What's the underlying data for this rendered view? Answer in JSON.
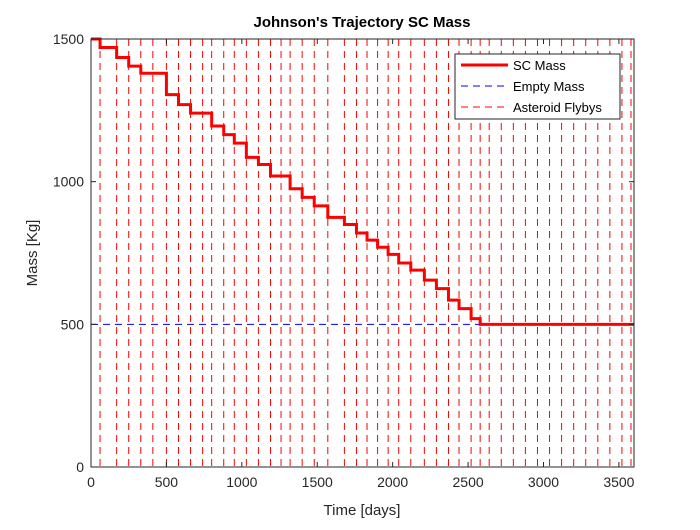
{
  "chart_data": {
    "type": "line",
    "title": "Johnson's Trajectory SC Mass",
    "xlabel": "Time [days]",
    "ylabel": "Mass [Kg]",
    "xlim": [
      0,
      3600
    ],
    "ylim": [
      0,
      1500
    ],
    "xticks": [
      0,
      500,
      1000,
      1500,
      2000,
      2500,
      3000,
      3500
    ],
    "yticks": [
      0,
      500,
      1000,
      1500
    ],
    "grid": false,
    "legend_position": "top-right",
    "series": [
      {
        "name": "SC Mass",
        "style": "solid",
        "color": "#ff0000",
        "step_x": [
          60,
          170,
          250,
          330,
          500,
          580,
          660,
          800,
          880,
          950,
          1030,
          1110,
          1190,
          1320,
          1400,
          1480,
          1570,
          1680,
          1760,
          1830,
          1900,
          1970,
          2040,
          2120,
          2210,
          2290,
          2370,
          2440,
          2520,
          2580,
          2640
        ],
        "step_y": [
          1500,
          1470,
          1435,
          1405,
          1380,
          1305,
          1270,
          1240,
          1195,
          1165,
          1135,
          1085,
          1060,
          1020,
          975,
          945,
          915,
          875,
          850,
          820,
          795,
          770,
          745,
          715,
          690,
          655,
          625,
          585,
          555,
          520,
          500,
          500
        ],
        "x_end": 3600
      },
      {
        "name": "Empty Mass",
        "style": "dashed",
        "color": "#0000ff",
        "y": 500
      },
      {
        "name": "Asteroid Flybys",
        "style": "dashed",
        "color": "#ff0000",
        "x": [
          60,
          170,
          250,
          330,
          410,
          500,
          580,
          660,
          740,
          800,
          880,
          950,
          1030,
          1110,
          1190,
          1260,
          1320,
          1400,
          1480,
          1570,
          1680,
          1760,
          1830,
          1900,
          1970,
          2040,
          2120,
          2210,
          2290,
          2370,
          2440,
          2520,
          2580,
          2640,
          2720,
          2800,
          2880,
          2960,
          3040,
          3120,
          3200,
          3280,
          3360,
          3440,
          3520,
          3580
        ]
      }
    ]
  }
}
